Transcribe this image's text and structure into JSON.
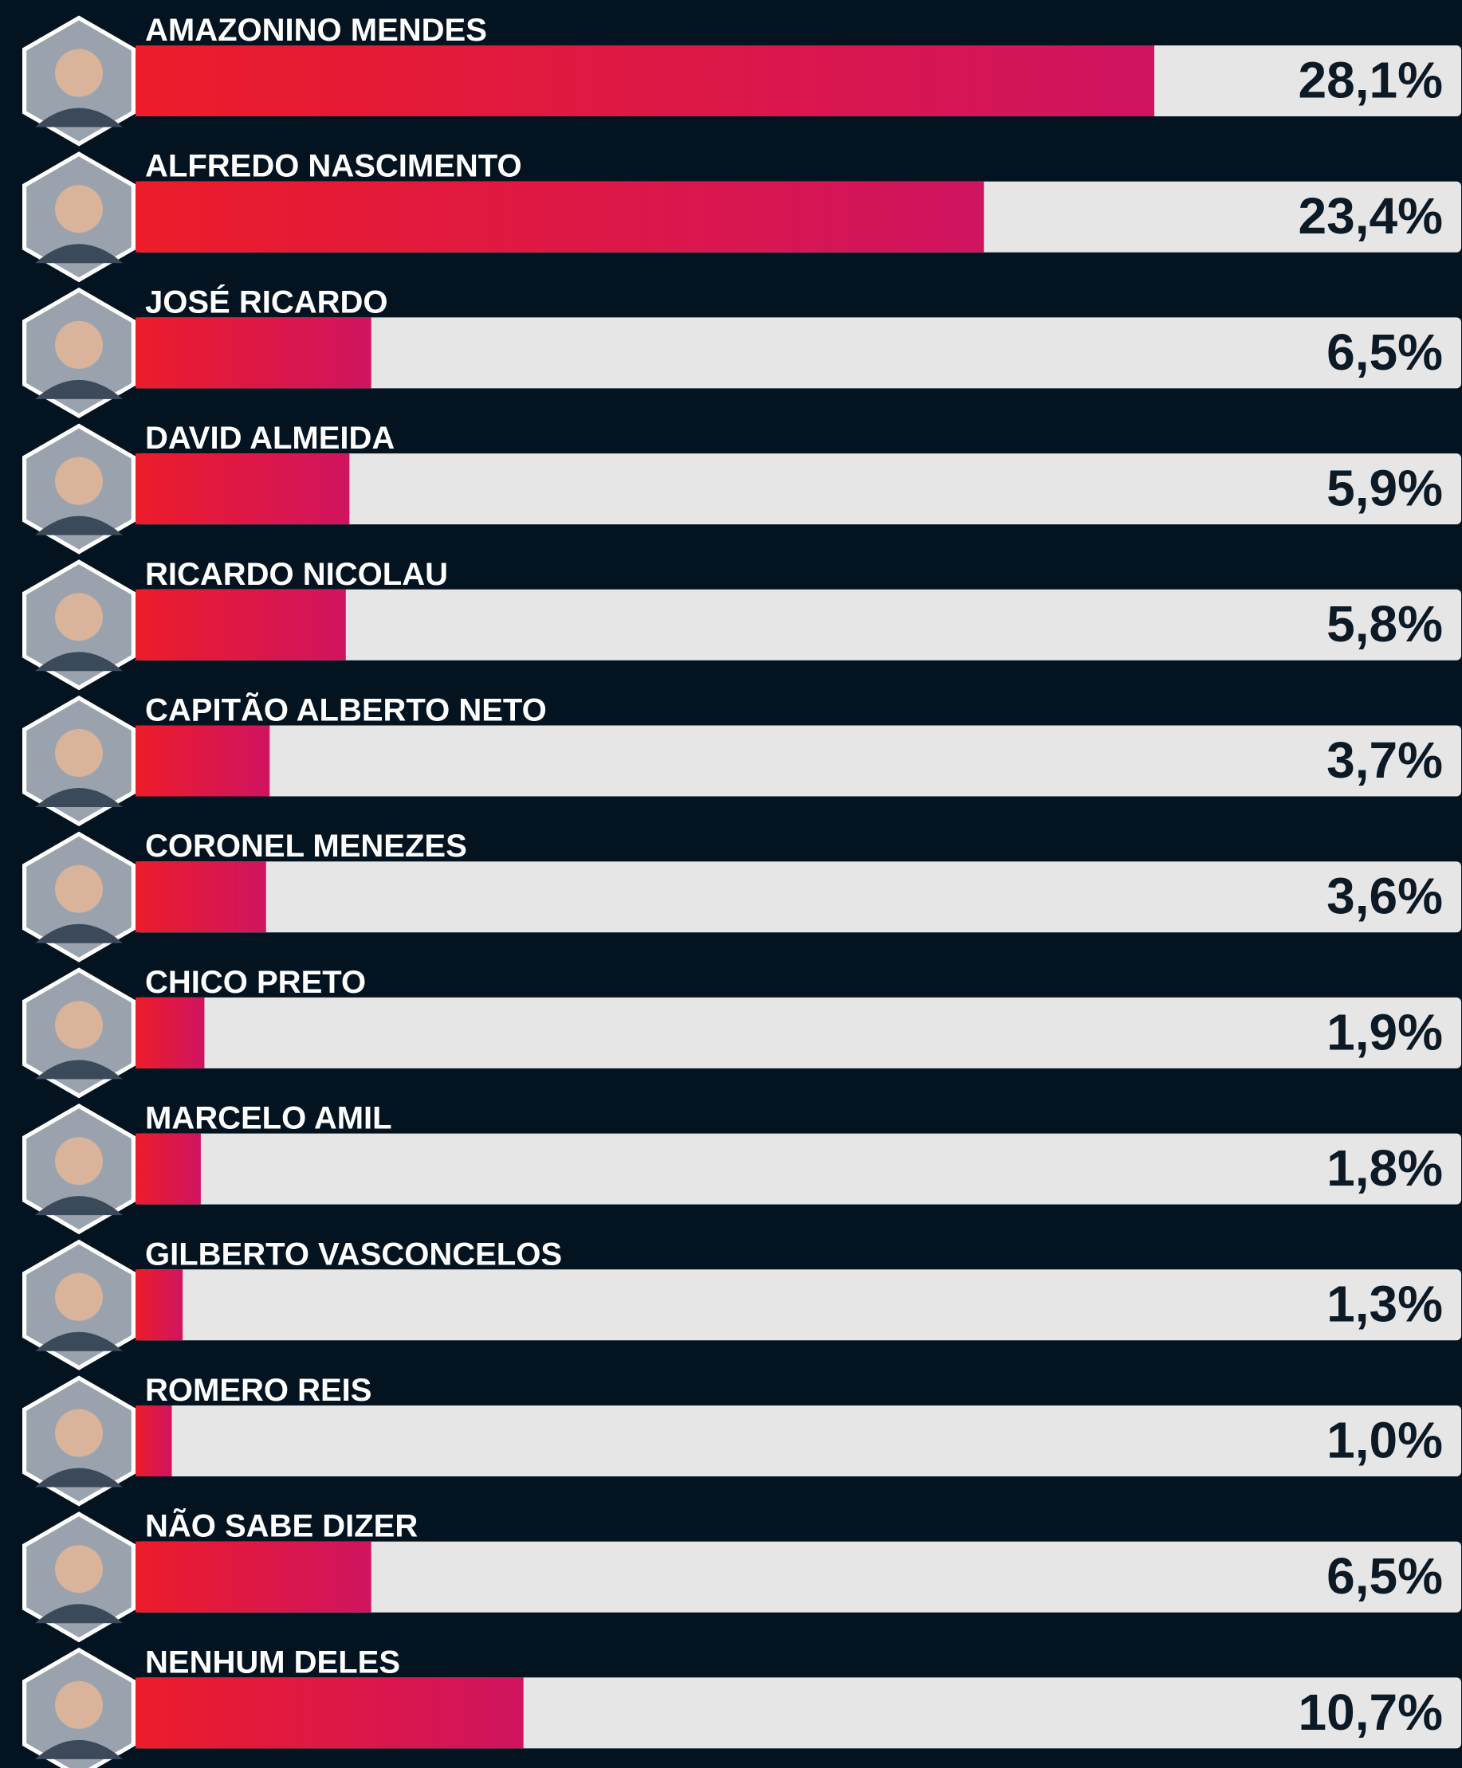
{
  "chart_data": {
    "type": "bar",
    "orientation": "horizontal",
    "categories": [
      "AMAZONINO MENDES",
      "ALFREDO NASCIMENTO",
      "JOSÉ RICARDO",
      "DAVID ALMEIDA",
      "RICARDO NICOLAU",
      "CAPITÃO ALBERTO NETO",
      "CORONEL MENEZES",
      "CHICO PRETO",
      "MARCELO AMIL",
      "GILBERTO VASCONCELOS",
      "ROMERO REIS",
      "NÃO SABE DIZER",
      "NENHUM DELES"
    ],
    "values": [
      28.1,
      23.4,
      6.5,
      5.9,
      5.8,
      3.7,
      3.6,
      1.9,
      1.8,
      1.3,
      1.0,
      6.5,
      10.7
    ],
    "value_labels": [
      "28,1%",
      "23,4%",
      "6,5%",
      "5,9%",
      "5,8%",
      "3,7%",
      "3,6%",
      "1,9%",
      "1,8%",
      "1,3%",
      "1,0%",
      "6,5%",
      "10,7%"
    ],
    "colors": [
      "#ec1c2a",
      "#d01460"
    ],
    "track_color": "#e6e6e6",
    "background": "#03131f"
  }
}
